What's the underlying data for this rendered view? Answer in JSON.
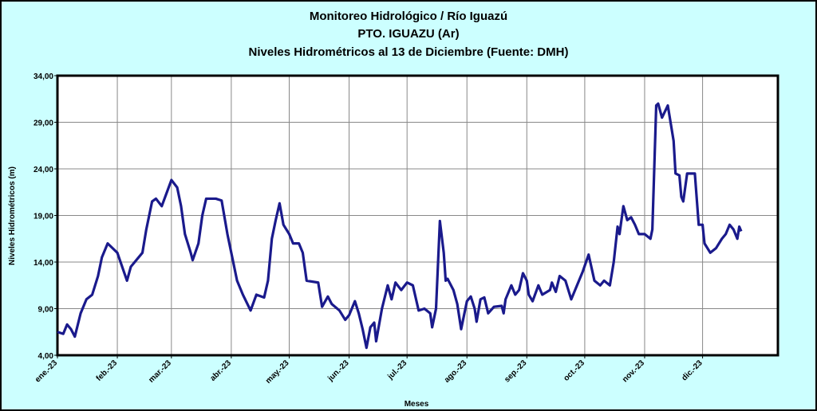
{
  "chart_data": {
    "type": "line",
    "title": [
      "Monitoreo Hidrológico / Río Iguazú",
      "PTO.  IGUAZU (Ar)",
      "Niveles Hidrométricos  al 13 de Diciembre (Fuente: DMH)"
    ],
    "x_label": "Meses",
    "y_label": "Niveles Hidrométricos (m)",
    "xlim": [
      0,
      373
    ],
    "xticks": [
      {
        "value": 0,
        "label": "ene.-23"
      },
      {
        "value": 31,
        "label": "feb.-23"
      },
      {
        "value": 59,
        "label": "mar.-23"
      },
      {
        "value": 90,
        "label": "abr.-23"
      },
      {
        "value": 120,
        "label": "may.-23"
      },
      {
        "value": 151,
        "label": "jun.-23"
      },
      {
        "value": 181,
        "label": "jul.-23"
      },
      {
        "value": 212,
        "label": "ago.-23"
      },
      {
        "value": 243,
        "label": "sep.-23"
      },
      {
        "value": 273,
        "label": "oct.-23"
      },
      {
        "value": 304,
        "label": "nov.-23"
      },
      {
        "value": 334,
        "label": "dic.-23"
      }
    ],
    "ylim": [
      4,
      34
    ],
    "yticks": [
      {
        "value": 4,
        "label": "4,00"
      },
      {
        "value": 9,
        "label": "9,00"
      },
      {
        "value": 14,
        "label": "14,00"
      },
      {
        "value": 19,
        "label": "19,00"
      },
      {
        "value": 24,
        "label": "24,00"
      },
      {
        "value": 29,
        "label": "29,00"
      },
      {
        "value": 34,
        "label": "34,00"
      }
    ],
    "grid": true,
    "series": [
      {
        "color": "#1a1a8c",
        "x": [
          0,
          3,
          5,
          7,
          9,
          12,
          15,
          18,
          21,
          23,
          26,
          31,
          36,
          38,
          44,
          46,
          49,
          51,
          54,
          59,
          62,
          64,
          66,
          69,
          70,
          73,
          75,
          77,
          82,
          85,
          88,
          91,
          93,
          96,
          100,
          103,
          107,
          109,
          111,
          113,
          115,
          117,
          120,
          122,
          125,
          127,
          129,
          135,
          137,
          140,
          142,
          146,
          149,
          151,
          154,
          156,
          158,
          160,
          162,
          164,
          165,
          168,
          171,
          173,
          175,
          178,
          181,
          184,
          187,
          190,
          193,
          194,
          196,
          198,
          200,
          201,
          202,
          205,
          207,
          209,
          212,
          214,
          216,
          217,
          219,
          221,
          223,
          226,
          230,
          231,
          232,
          235,
          237,
          239,
          241,
          243,
          244,
          246,
          249,
          251,
          255,
          256,
          258,
          260,
          263,
          266,
          269,
          272,
          275,
          278,
          281,
          283,
          286,
          288,
          290,
          291,
          293,
          295,
          297,
          299,
          301,
          304,
          307,
          308,
          310,
          311,
          313,
          316,
          319,
          320,
          322,
          323,
          324,
          326,
          330,
          332,
          334,
          335,
          338,
          341,
          344,
          346,
          348,
          350,
          352,
          353,
          354
        ],
        "values": [
          6.5,
          6.3,
          7.3,
          6.8,
          6.0,
          8.5,
          10.0,
          10.5,
          12.5,
          14.5,
          16.0,
          15.0,
          12.0,
          13.5,
          15.0,
          17.5,
          20.5,
          20.8,
          20.0,
          22.8,
          22.0,
          20.0,
          17.0,
          15.0,
          14.2,
          16.0,
          19.0,
          20.8,
          20.8,
          20.6,
          17.0,
          14.0,
          12.0,
          10.5,
          8.8,
          10.5,
          10.2,
          12.0,
          16.5,
          18.5,
          20.3,
          18.0,
          17.0,
          16.0,
          16.0,
          15.0,
          12.0,
          11.8,
          9.2,
          10.3,
          9.5,
          8.8,
          7.8,
          8.3,
          9.8,
          8.5,
          6.8,
          4.8,
          7.0,
          7.5,
          5.5,
          9.0,
          11.5,
          10.0,
          11.8,
          11.0,
          11.8,
          11.5,
          8.8,
          9.0,
          8.5,
          7.0,
          9.0,
          18.4,
          15.0,
          12.0,
          12.2,
          11.0,
          9.5,
          6.8,
          9.8,
          10.3,
          9.0,
          7.6,
          10.0,
          10.2,
          8.5,
          9.2,
          9.3,
          8.5,
          10.0,
          11.5,
          10.5,
          11.0,
          12.8,
          12.0,
          10.5,
          9.8,
          11.5,
          10.5,
          11.0,
          11.8,
          10.8,
          12.5,
          12.0,
          10.0,
          11.5,
          13.0,
          14.8,
          12.0,
          11.5,
          12.0,
          11.5,
          14.0,
          17.8,
          17.0,
          20.0,
          18.5,
          18.8,
          18.0,
          17.0,
          17.0,
          16.5,
          17.5,
          30.8,
          31.0,
          29.5,
          30.8,
          27.0,
          23.5,
          23.3,
          21.0,
          20.5,
          23.5,
          23.5,
          18.0,
          18.0,
          16.0,
          15.0,
          15.5,
          16.5,
          17.0,
          18.0,
          17.5,
          16.5,
          17.8,
          17.3
        ]
      }
    ]
  }
}
